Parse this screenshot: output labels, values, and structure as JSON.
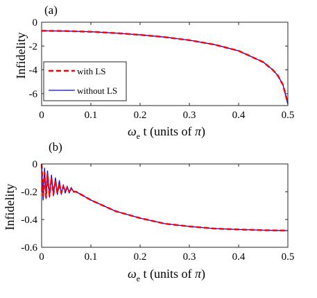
{
  "chart_data": [
    {
      "type": "line",
      "panel_label": "(a)",
      "ylabel": "Infidelity",
      "xlabel": {
        "omega": "ω",
        "sub": "e",
        "rest": " t (units of ",
        "pi": "π",
        "close": ")"
      },
      "xlim": [
        0,
        0.5
      ],
      "ylim": [
        -7,
        0
      ],
      "xticks": [
        "0",
        "0.1",
        "0.2",
        "0.3",
        "0.4",
        "0.5"
      ],
      "yticks": [
        "0",
        "-2",
        "-4",
        "-6"
      ],
      "legend": {
        "position": "lower-left",
        "entries": [
          "with LS",
          "without LS"
        ]
      },
      "series": [
        {
          "name": "with LS",
          "color": "#ff0000",
          "style": "dashed",
          "x": [
            0,
            0.05,
            0.1,
            0.15,
            0.2,
            0.25,
            0.3,
            0.35,
            0.4,
            0.45,
            0.47,
            0.48,
            0.49,
            0.5
          ],
          "y": [
            -0.72,
            -0.74,
            -0.8,
            -0.91,
            -1.06,
            -1.25,
            -1.51,
            -1.87,
            -2.4,
            -3.35,
            -4.02,
            -4.5,
            -5.25,
            -6.8
          ]
        },
        {
          "name": "without LS",
          "color": "#0000ff",
          "style": "solid",
          "x": [
            0,
            0.05,
            0.1,
            0.15,
            0.2,
            0.25,
            0.3,
            0.35,
            0.4,
            0.45,
            0.47,
            0.48,
            0.49,
            0.5
          ],
          "y": [
            -0.72,
            -0.74,
            -0.8,
            -0.91,
            -1.06,
            -1.25,
            -1.51,
            -1.87,
            -2.4,
            -3.35,
            -4.02,
            -4.5,
            -5.25,
            -6.9
          ]
        }
      ]
    },
    {
      "type": "line",
      "panel_label": "(b)",
      "ylabel": "Infidelity",
      "xlabel": {
        "omega": "ω",
        "sub": "e",
        "rest": " t (units of ",
        "pi": "π",
        "close": ")"
      },
      "xlim": [
        0,
        0.5
      ],
      "ylim": [
        -0.6,
        0
      ],
      "xticks": [
        "0",
        "0.1",
        "0.2",
        "0.3",
        "0.4",
        "0.5"
      ],
      "yticks": [
        "0",
        "-0.2",
        "-0.4",
        "-0.6"
      ],
      "series": [
        {
          "name": "with LS",
          "color": "#ff0000",
          "style": "dashed",
          "x": [
            0,
            0.003,
            0.006,
            0.009,
            0.012,
            0.016,
            0.02,
            0.024,
            0.028,
            0.032,
            0.036,
            0.04,
            0.044,
            0.048,
            0.052,
            0.056,
            0.06,
            0.065,
            0.07,
            0.08,
            0.1,
            0.15,
            0.2,
            0.25,
            0.3,
            0.35,
            0.4,
            0.45,
            0.5
          ],
          "y": [
            0,
            -0.23,
            -0.06,
            -0.24,
            -0.07,
            -0.23,
            -0.1,
            -0.22,
            -0.12,
            -0.21,
            -0.14,
            -0.21,
            -0.16,
            -0.2,
            -0.17,
            -0.2,
            -0.18,
            -0.2,
            -0.2,
            -0.22,
            -0.26,
            -0.34,
            -0.39,
            -0.43,
            -0.45,
            -0.465,
            -0.472,
            -0.477,
            -0.48
          ]
        },
        {
          "name": "without LS",
          "color": "#0000ff",
          "style": "solid",
          "x": [
            0,
            0.003,
            0.006,
            0.009,
            0.012,
            0.016,
            0.02,
            0.024,
            0.028,
            0.032,
            0.036,
            0.04,
            0.044,
            0.048,
            0.052,
            0.056,
            0.06,
            0.065,
            0.07,
            0.08,
            0.1,
            0.15,
            0.2,
            0.25,
            0.3,
            0.35,
            0.4,
            0.45,
            0.5
          ],
          "y": [
            0,
            -0.26,
            -0.03,
            -0.25,
            -0.05,
            -0.24,
            -0.08,
            -0.23,
            -0.1,
            -0.22,
            -0.12,
            -0.22,
            -0.15,
            -0.21,
            -0.16,
            -0.21,
            -0.17,
            -0.2,
            -0.2,
            -0.22,
            -0.26,
            -0.34,
            -0.39,
            -0.43,
            -0.45,
            -0.465,
            -0.472,
            -0.477,
            -0.48
          ]
        }
      ]
    }
  ]
}
